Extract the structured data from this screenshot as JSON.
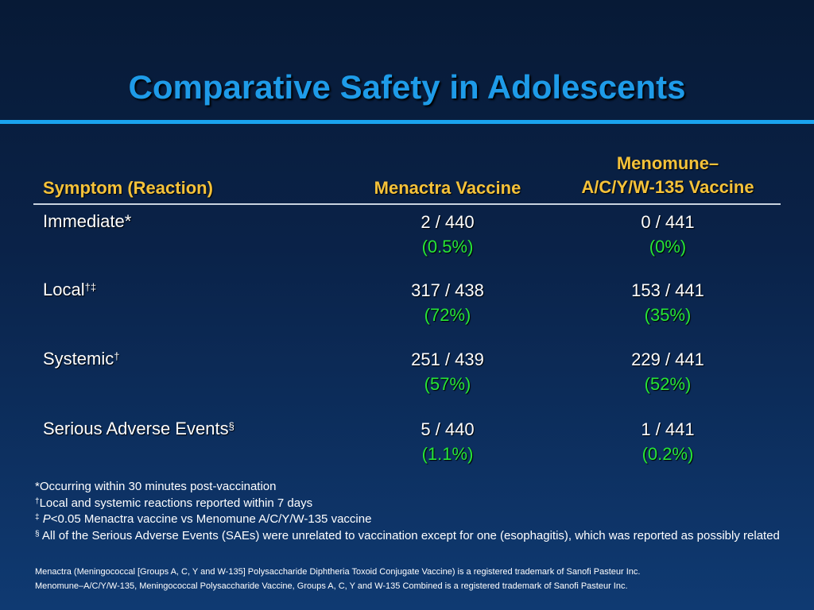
{
  "title": "Comparative Safety in Adolescents",
  "table": {
    "headers": {
      "symptom": "Symptom (Reaction)",
      "menactra": "Menactra Vaccine",
      "menomune_line1": "Menomune–",
      "menomune_line2": "A/C/Y/W-135 Vaccine"
    },
    "rows": [
      {
        "label": "Immediate*",
        "sup": "",
        "menactra_count": "2 / 440",
        "menactra_pct": "(0.5%)",
        "menomune_count": "0 / 441",
        "menomune_pct": "(0%)"
      },
      {
        "label": "Local",
        "sup": "†‡",
        "menactra_count": "317 / 438",
        "menactra_pct": "(72%)",
        "menomune_count": "153 / 441",
        "menomune_pct": "(35%)"
      },
      {
        "label": "Systemic",
        "sup": "†",
        "menactra_count": "251 / 439",
        "menactra_pct": "(57%)",
        "menomune_count": "229 / 441",
        "menomune_pct": "(52%)"
      },
      {
        "label": "Serious Adverse Events",
        "sup": "§",
        "menactra_count": "5 / 440",
        "menactra_pct": "(1.1%)",
        "menomune_count": "1 / 441",
        "menomune_pct": "(0.2%)"
      }
    ]
  },
  "footnotes": {
    "immediate": "*Occurring within 30 minutes post-vaccination",
    "dagger_mark": "†",
    "dagger": "Local and systemic reactions reported within 7 days",
    "ddagger_mark": "‡",
    "ddagger_p": "P",
    "ddagger": "<0.05 Menactra vaccine vs Menomune A/C/Y/W-135 vaccine",
    "section_mark": "§",
    "section": "All of the Serious Adverse Events (SAEs) were unrelated to vaccination except for one (esophagitis), which was reported as possibly related"
  },
  "trademarks": {
    "menactra": "Menactra (Meningococcal [Groups A, C, Y and W-135] Polysaccharide Diphtheria Toxoid Conjugate Vaccine) is a registered trademark of Sanofi Pasteur Inc.",
    "menomune": "Menomune–A/C/Y/W-135, Meningococcal Polysaccharide Vaccine, Groups A, C, Y and W-135 Combined is a registered trademark of Sanofi Pasteur Inc."
  },
  "colors": {
    "title": "#1e9be8",
    "header": "#f5c23a",
    "percent": "#27e636",
    "rule": "#1aa3ef"
  }
}
